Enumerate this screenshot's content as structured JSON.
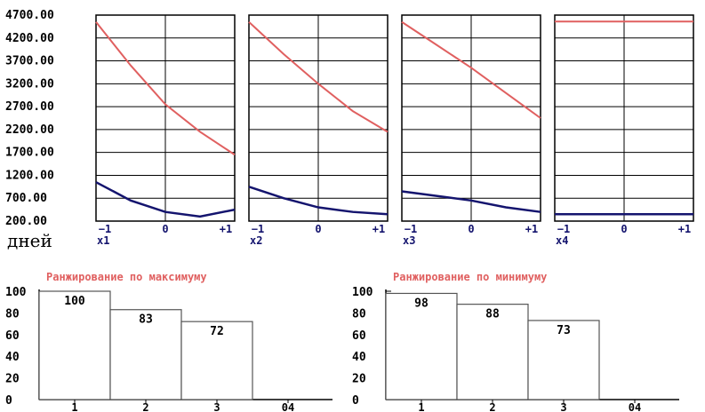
{
  "chart_data": [
    {
      "type": "line",
      "group": "sensitivity",
      "ylim": [
        200,
        4700
      ],
      "y_tick_labels": [
        "4700.00",
        "4200.00",
        "3700.00",
        "3200.00",
        "2700.00",
        "2200.00",
        "1700.00",
        "1200.00",
        "700.00",
        "200.00"
      ],
      "y_unit_label": "дней",
      "x_tick_labels": [
        "−1",
        "0",
        "+1"
      ],
      "colors": {
        "upper": "#e06060",
        "lower": "#14146e",
        "grid": "#000000",
        "axis_label": "#14146e"
      },
      "panels": [
        {
          "xlabel": "x1",
          "x": [
            -1,
            -0.5,
            0,
            0.5,
            1
          ],
          "upper": [
            4550,
            3600,
            2750,
            2150,
            1650
          ],
          "lower": [
            1050,
            650,
            400,
            300,
            450
          ]
        },
        {
          "xlabel": "x2",
          "x": [
            -1,
            -0.5,
            0,
            0.5,
            1
          ],
          "upper": [
            4550,
            3850,
            3200,
            2600,
            2150
          ],
          "lower": [
            950,
            700,
            500,
            400,
            350
          ]
        },
        {
          "xlabel": "x3",
          "x": [
            -1,
            -0.5,
            0,
            0.5,
            1
          ],
          "upper": [
            4550,
            4050,
            3550,
            3000,
            2450
          ],
          "lower": [
            850,
            750,
            650,
            500,
            400
          ]
        },
        {
          "xlabel": "x4",
          "x": [
            -1,
            -0.5,
            0,
            0.5,
            1
          ],
          "upper": [
            4560,
            4560,
            4560,
            4560,
            4560
          ],
          "lower": [
            350,
            350,
            350,
            350,
            350
          ]
        }
      ]
    },
    {
      "type": "bar",
      "title": "Ранжирование по максимуму",
      "categories": [
        "1",
        "2",
        "3",
        "04"
      ],
      "values": [
        100,
        83,
        72,
        null
      ],
      "ylim": [
        0,
        100
      ],
      "y_tick_labels": [
        "100",
        "80",
        "60",
        "40",
        "20",
        "0"
      ],
      "colors": {
        "title": "#e06060",
        "bar_fill": "#ffffff",
        "bar_stroke": "#555555"
      }
    },
    {
      "type": "bar",
      "title": "Ранжирование по минимуму",
      "categories": [
        "1",
        "2",
        "3",
        "04"
      ],
      "values": [
        98,
        88,
        73,
        null
      ],
      "ylim": [
        0,
        100
      ],
      "y_tick_labels": [
        "100",
        "80",
        "60",
        "40",
        "20",
        "0"
      ],
      "colors": {
        "title": "#e06060",
        "bar_fill": "#ffffff",
        "bar_stroke": "#555555"
      }
    }
  ]
}
